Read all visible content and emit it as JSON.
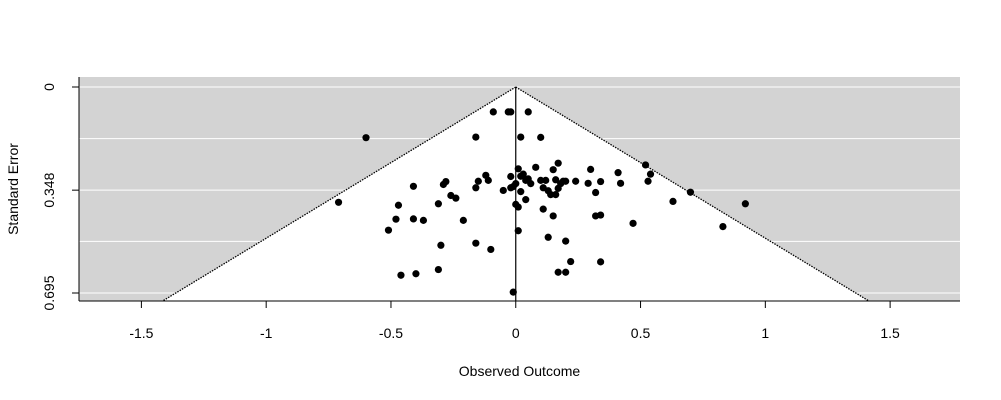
{
  "chart_data": {
    "type": "scatter",
    "subtype": "funnel",
    "title": "",
    "xlabel": "Observed Outcome",
    "ylabel": "Standard Error",
    "xlim": [
      -1.75,
      1.78
    ],
    "ylim": [
      0.695,
      0
    ],
    "y_axis_reversed": true,
    "x_ticks": [
      -1.5,
      -1,
      -0.5,
      0,
      0.5,
      1,
      1.5
    ],
    "x_tick_labels": [
      "-1.5",
      "-1",
      "-0.5",
      "0",
      "0.5",
      "1",
      "1.5"
    ],
    "y_ticks": [
      0,
      0.348,
      0.695
    ],
    "y_tick_labels": [
      "0",
      "0.348",
      "0.695"
    ],
    "y_gridlines": [
      0,
      0.174,
      0.348,
      0.521,
      0.695
    ],
    "grid": true,
    "background_color": "#d3d3d3",
    "funnel_fill_color": "#ffffff",
    "point_color": "#000000",
    "grid_color": "#ffffff",
    "reference_line_x": 0,
    "funnel_multiplier": 1.96,
    "points": [
      {
        "x": -0.6,
        "y": 0.171
      },
      {
        "x": -0.71,
        "y": 0.389
      },
      {
        "x": -0.46,
        "y": 0.635
      },
      {
        "x": -0.4,
        "y": 0.63
      },
      {
        "x": -0.31,
        "y": 0.616
      },
      {
        "x": -0.51,
        "y": 0.483
      },
      {
        "x": -0.48,
        "y": 0.446
      },
      {
        "x": -0.47,
        "y": 0.399
      },
      {
        "x": -0.41,
        "y": 0.445
      },
      {
        "x": -0.37,
        "y": 0.45
      },
      {
        "x": -0.41,
        "y": 0.335
      },
      {
        "x": -0.31,
        "y": 0.394
      },
      {
        "x": -0.3,
        "y": 0.534
      },
      {
        "x": -0.29,
        "y": 0.329
      },
      {
        "x": -0.28,
        "y": 0.319
      },
      {
        "x": -0.26,
        "y": 0.366
      },
      {
        "x": -0.24,
        "y": 0.375
      },
      {
        "x": -0.21,
        "y": 0.45
      },
      {
        "x": -0.16,
        "y": 0.527
      },
      {
        "x": -0.16,
        "y": 0.169
      },
      {
        "x": -0.16,
        "y": 0.34
      },
      {
        "x": -0.15,
        "y": 0.318
      },
      {
        "x": -0.12,
        "y": 0.298
      },
      {
        "x": -0.11,
        "y": 0.315
      },
      {
        "x": -0.1,
        "y": 0.548
      },
      {
        "x": -0.09,
        "y": 0.084
      },
      {
        "x": -0.05,
        "y": 0.349
      },
      {
        "x": -0.03,
        "y": 0.084
      },
      {
        "x": -0.02,
        "y": 0.084
      },
      {
        "x": -0.02,
        "y": 0.34
      },
      {
        "x": -0.02,
        "y": 0.302
      },
      {
        "x": -0.01,
        "y": 0.336
      },
      {
        "x": 0.0,
        "y": 0.396
      },
      {
        "x": 0.0,
        "y": 0.326
      },
      {
        "x": 0.01,
        "y": 0.276
      },
      {
        "x": 0.01,
        "y": 0.405
      },
      {
        "x": 0.02,
        "y": 0.301
      },
      {
        "x": 0.02,
        "y": 0.353
      },
      {
        "x": 0.01,
        "y": 0.485
      },
      {
        "x": 0.02,
        "y": 0.169
      },
      {
        "x": 0.03,
        "y": 0.294
      },
      {
        "x": 0.04,
        "y": 0.315
      },
      {
        "x": 0.04,
        "y": 0.38
      },
      {
        "x": 0.05,
        "y": 0.31
      },
      {
        "x": 0.05,
        "y": 0.084
      },
      {
        "x": 0.06,
        "y": 0.326
      },
      {
        "x": -0.01,
        "y": 0.692
      },
      {
        "x": 0.08,
        "y": 0.271
      },
      {
        "x": 0.1,
        "y": 0.17
      },
      {
        "x": 0.1,
        "y": 0.315
      },
      {
        "x": 0.11,
        "y": 0.412
      },
      {
        "x": 0.11,
        "y": 0.34
      },
      {
        "x": 0.12,
        "y": 0.315
      },
      {
        "x": 0.13,
        "y": 0.35
      },
      {
        "x": 0.13,
        "y": 0.507
      },
      {
        "x": 0.14,
        "y": 0.363
      },
      {
        "x": 0.15,
        "y": 0.435
      },
      {
        "x": 0.15,
        "y": 0.279
      },
      {
        "x": 0.16,
        "y": 0.313
      },
      {
        "x": 0.16,
        "y": 0.363
      },
      {
        "x": 0.17,
        "y": 0.342
      },
      {
        "x": 0.17,
        "y": 0.257
      },
      {
        "x": 0.18,
        "y": 0.326
      },
      {
        "x": 0.19,
        "y": 0.318
      },
      {
        "x": 0.2,
        "y": 0.318
      },
      {
        "x": 0.2,
        "y": 0.52
      },
      {
        "x": 0.2,
        "y": 0.625
      },
      {
        "x": 0.17,
        "y": 0.625
      },
      {
        "x": 0.22,
        "y": 0.589
      },
      {
        "x": 0.24,
        "y": 0.318
      },
      {
        "x": 0.29,
        "y": 0.325
      },
      {
        "x": 0.3,
        "y": 0.278
      },
      {
        "x": 0.32,
        "y": 0.435
      },
      {
        "x": 0.32,
        "y": 0.356
      },
      {
        "x": 0.34,
        "y": 0.59
      },
      {
        "x": 0.34,
        "y": 0.432
      },
      {
        "x": 0.34,
        "y": 0.319
      },
      {
        "x": 0.41,
        "y": 0.289
      },
      {
        "x": 0.42,
        "y": 0.325
      },
      {
        "x": 0.47,
        "y": 0.46
      },
      {
        "x": 0.52,
        "y": 0.263
      },
      {
        "x": 0.53,
        "y": 0.318
      },
      {
        "x": 0.54,
        "y": 0.294
      },
      {
        "x": 0.63,
        "y": 0.386
      },
      {
        "x": 0.7,
        "y": 0.355
      },
      {
        "x": 0.83,
        "y": 0.471
      },
      {
        "x": 0.92,
        "y": 0.394
      }
    ]
  }
}
